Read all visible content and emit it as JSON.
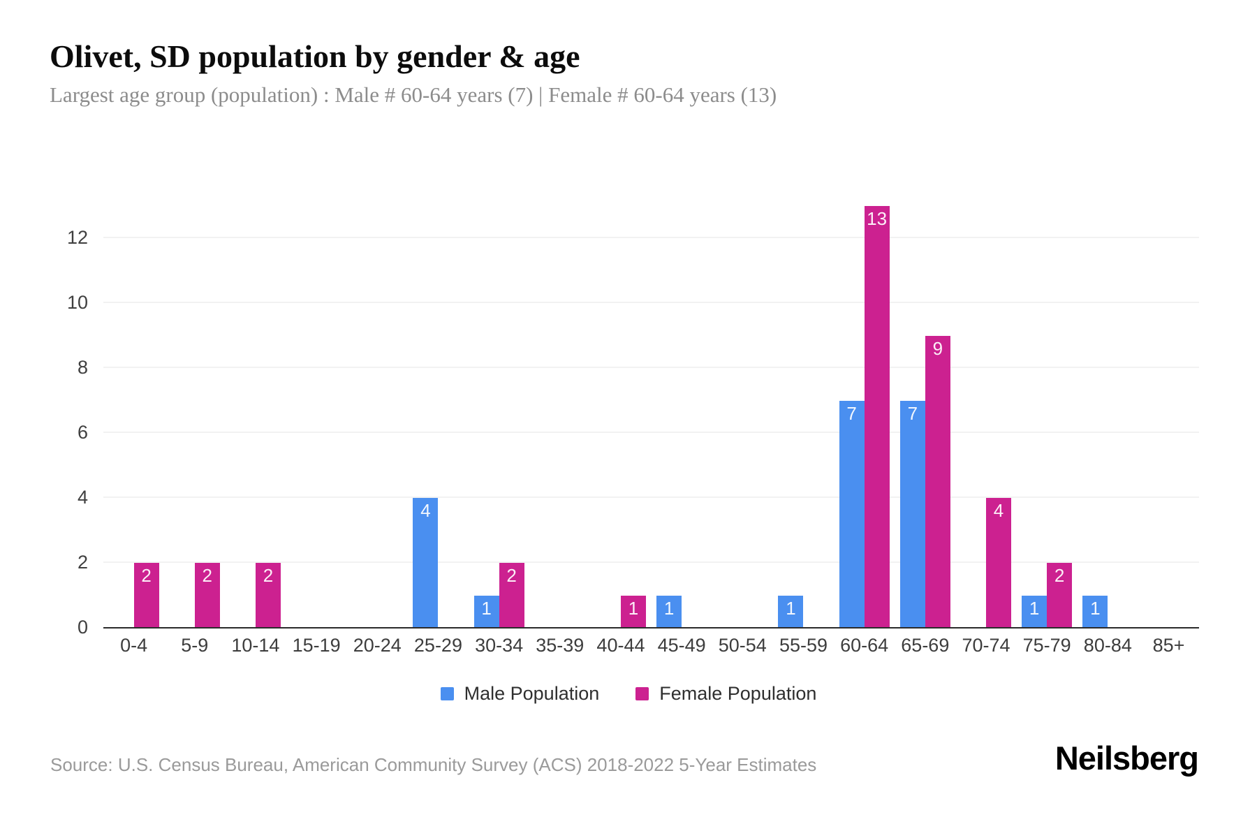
{
  "header": {
    "title": "Olivet, SD population by gender & age",
    "subtitle": "Largest age group (population) : Male # 60-64 years (7) | Female # 60-64 years (13)"
  },
  "chart_data": {
    "type": "bar",
    "title": "Olivet, SD population by gender & age",
    "subtitle": "Largest age group (population) : Male # 60-64 years (7) | Female # 60-64 years (13)",
    "categories": [
      "0-4",
      "5-9",
      "10-14",
      "15-19",
      "20-24",
      "25-29",
      "30-34",
      "35-39",
      "40-44",
      "45-49",
      "50-54",
      "55-59",
      "60-64",
      "65-69",
      "70-74",
      "75-79",
      "80-84",
      "85+"
    ],
    "series": [
      {
        "name": "Male Population",
        "color": "#4a8ff0",
        "values": [
          0,
          0,
          0,
          0,
          0,
          4,
          1,
          0,
          0,
          1,
          0,
          1,
          7,
          7,
          0,
          1,
          1,
          0
        ]
      },
      {
        "name": "Female Population",
        "color": "#cc2190",
        "values": [
          2,
          2,
          2,
          0,
          0,
          0,
          2,
          0,
          1,
          0,
          0,
          0,
          13,
          9,
          4,
          2,
          0,
          0
        ]
      }
    ],
    "ylim": [
      0,
      13
    ],
    "yticks": [
      0,
      2,
      4,
      6,
      8,
      10,
      12
    ],
    "grid": true,
    "legend_position": "bottom",
    "value_labels": "inside-top-white",
    "colors": {
      "male": "#4a8ff0",
      "female": "#cc2190",
      "grid": "#f2f2f2",
      "axis": "#2b2b2b",
      "tick_text": "#3f3f3f",
      "subtitle_text": "#8c8c8c",
      "source_text": "#9a9a9a"
    }
  },
  "legend": {
    "items": [
      {
        "label": "Male Population",
        "color": "#4a8ff0"
      },
      {
        "label": "Female Population",
        "color": "#cc2190"
      }
    ]
  },
  "footer": {
    "source": "Source: U.S. Census Bureau, American Community Survey (ACS) 2018-2022 5-Year Estimates",
    "brand": "Neilsberg"
  }
}
